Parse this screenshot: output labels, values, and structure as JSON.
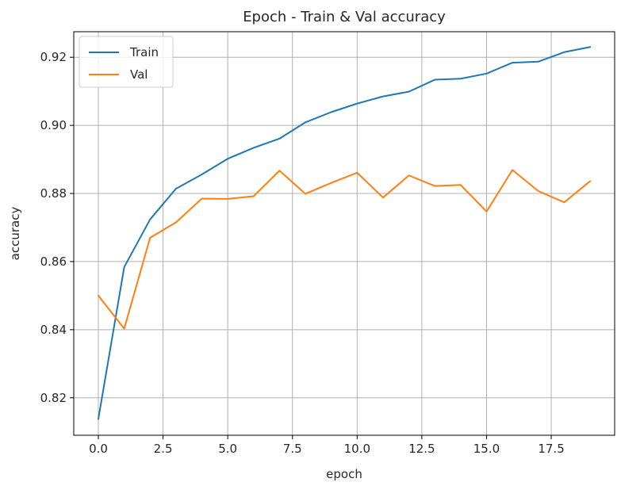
{
  "chart_data": {
    "type": "line",
    "title": "Epoch - Train & Val accuracy",
    "xlabel": "epoch",
    "ylabel": "accuracy",
    "x": [
      0,
      1,
      2,
      3,
      4,
      5,
      6,
      7,
      8,
      9,
      10,
      11,
      12,
      13,
      14,
      15,
      16,
      17,
      18,
      19
    ],
    "xlim": [
      -0.95,
      19.95
    ],
    "ylim": [
      0.809,
      0.9275
    ],
    "xticks": [
      0.0,
      2.5,
      5.0,
      7.5,
      10.0,
      12.5,
      15.0,
      17.5
    ],
    "xtick_labels": [
      "0.0",
      "2.5",
      "5.0",
      "7.5",
      "10.0",
      "12.5",
      "15.0",
      "17.5"
    ],
    "yticks": [
      0.82,
      0.84,
      0.86,
      0.88,
      0.9,
      0.92
    ],
    "ytick_labels": [
      "0.82",
      "0.84",
      "0.86",
      "0.88",
      "0.90",
      "0.92"
    ],
    "grid": true,
    "legend_position": "top-left",
    "series": [
      {
        "name": "Train",
        "color": "#1f77b4",
        "values": [
          0.8138,
          0.8584,
          0.8724,
          0.8814,
          0.8856,
          0.8902,
          0.8934,
          0.8961,
          0.9009,
          0.9039,
          0.9064,
          0.9085,
          0.9099,
          0.9134,
          0.9137,
          0.9152,
          0.9184,
          0.9187,
          0.9215,
          0.923
        ]
      },
      {
        "name": "Val",
        "color": "#ff7f0e",
        "values": [
          0.85,
          0.8403,
          0.867,
          0.8715,
          0.8785,
          0.8784,
          0.8792,
          0.8867,
          0.8799,
          0.8831,
          0.8861,
          0.8788,
          0.8853,
          0.8822,
          0.8825,
          0.8747,
          0.8869,
          0.8807,
          0.8774,
          0.8836
        ]
      }
    ]
  }
}
